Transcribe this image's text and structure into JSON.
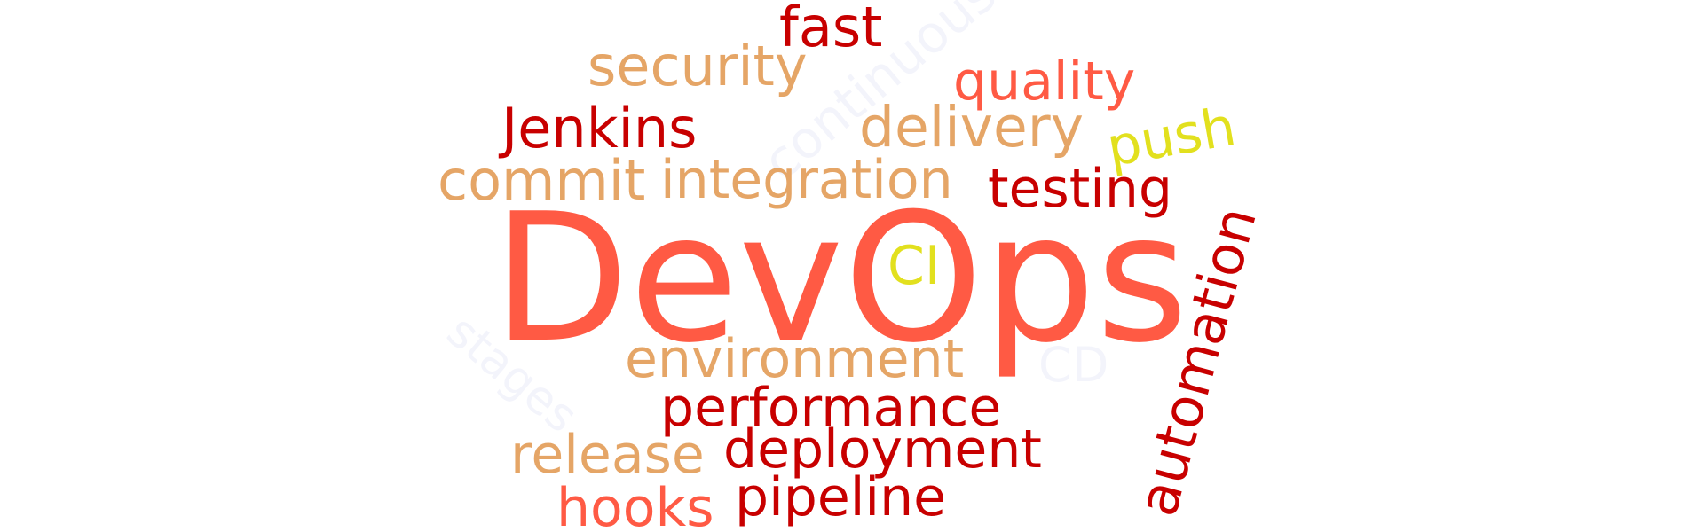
{
  "words": {
    "devops": "DevOps",
    "fast": "fast",
    "security": "security",
    "quality": "quality",
    "jenkins": "Jenkins",
    "delivery": "delivery",
    "push": "push",
    "commit": "commit",
    "integration": "integration",
    "testing": "testing",
    "ci": "CI",
    "automation": "automation",
    "environment": "environment",
    "cd": "CD",
    "performance": "performance",
    "release": "release",
    "deployment": "deployment",
    "hooks": "hooks",
    "pipeline": "pipeline",
    "continuous": "continuous",
    "stages": "stages"
  },
  "colors": {
    "red": "#c80000",
    "coral": "#ff5a44",
    "tan": "#e5a566",
    "yellow": "#e2e01e",
    "faint": "#f3f4fb"
  }
}
